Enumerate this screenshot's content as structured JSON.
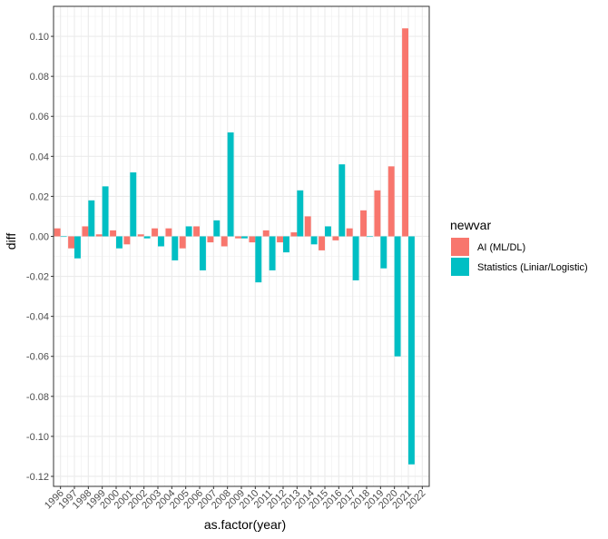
{
  "chart_data": {
    "type": "bar",
    "xlabel": "as.factor(year)",
    "ylabel": "diff",
    "ylim": [
      -0.125,
      0.115
    ],
    "yticks": [
      0.1,
      0.08,
      0.06,
      0.04,
      0.02,
      0.0,
      -0.02,
      -0.04,
      -0.06,
      -0.08,
      -0.1,
      -0.12
    ],
    "ytick_labels": [
      "0.10",
      "0.08",
      "0.06",
      "0.04",
      "0.02",
      "0.00",
      "-0.02",
      "-0.04",
      "-0.06",
      "-0.08",
      "-0.10",
      "-0.12"
    ],
    "grid": true,
    "legend_position": "right",
    "legend_title": "newvar",
    "categories": [
      "1996",
      "1997",
      "1998",
      "1999",
      "2000",
      "2001",
      "2002",
      "2003",
      "2004",
      "2005",
      "2006",
      "2007",
      "2008",
      "2009",
      "2010",
      "2011",
      "2012",
      "2013",
      "2014",
      "2015",
      "2016",
      "2017",
      "2018",
      "2019",
      "2020",
      "2021",
      "2022"
    ],
    "series": [
      {
        "name": "AI (ML/DL)",
        "color": "#F8766D",
        "values": [
          0.004,
          -0.006,
          0.005,
          0.001,
          0.003,
          -0.004,
          0.001,
          0.004,
          0.004,
          -0.006,
          0.005,
          -0.003,
          -0.005,
          -0.001,
          -0.003,
          0.003,
          -0.003,
          0.002,
          0.01,
          -0.007,
          -0.002,
          0.004,
          0.013,
          0.023,
          0.035,
          0.104,
          null
        ]
      },
      {
        "name": "Statistics (Liniar/Logistic)",
        "color": "#00BFC4",
        "values": [
          0.0,
          -0.011,
          0.018,
          0.025,
          -0.006,
          0.032,
          -0.001,
          -0.005,
          -0.012,
          0.005,
          -0.017,
          0.008,
          0.052,
          -0.001,
          -0.023,
          -0.017,
          -0.008,
          0.023,
          -0.004,
          0.005,
          0.036,
          -0.022,
          0.0,
          -0.016,
          -0.06,
          -0.114,
          null
        ]
      }
    ]
  }
}
